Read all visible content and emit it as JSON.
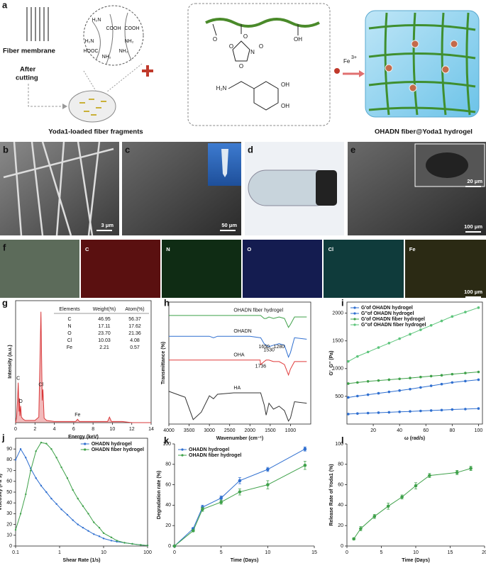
{
  "figure": {
    "panel_labels": [
      "a",
      "b",
      "c",
      "d",
      "e",
      "f",
      "g",
      "h",
      "i",
      "j",
      "k",
      "l"
    ],
    "a": {
      "fiber_membrane": "Fiber membrane",
      "after_cutting": [
        "After",
        "cutting"
      ],
      "fragments": "Yoda1-loaded fiber fragments",
      "hydrogel": "OHADN fiber@Yoda1 hydrogel",
      "ion": "Fe",
      "ion_charge": "3+",
      "zoom_groups": [
        "H₂N",
        "COOH",
        "H₂N",
        "NH₂",
        "HOOC",
        "NH₂",
        "COOH",
        "NH₂"
      ],
      "structure_atoms": [
        "O",
        "O",
        "O",
        "OH",
        "O",
        "N",
        "O",
        "H₂N",
        "OH",
        "OH"
      ]
    },
    "scale_bars": [
      "3 μm",
      "50 μm",
      "20 μm",
      "100 μm",
      "100 μm"
    ],
    "eds_maps": [
      "C",
      "N",
      "O",
      "Cl",
      "Fe"
    ],
    "eds_table": {
      "header": [
        "Elements",
        "Weight(%)",
        "Atom(%)"
      ],
      "rows": [
        [
          "C",
          "46.95",
          "56.37"
        ],
        [
          "N",
          "17.11",
          "17.62"
        ],
        [
          "O",
          "23.70",
          "21.36"
        ],
        [
          "Cl",
          "10.03",
          "4.08"
        ],
        [
          "Fe",
          "2.21",
          "0.57"
        ]
      ]
    }
  },
  "chart_data": [
    {
      "type": "line",
      "xlabel": "Energy (keV)",
      "ylabel": "Intensity (a.u.)",
      "frame": true,
      "fill": true,
      "xlim": [
        0,
        14
      ],
      "xticks": [
        0,
        2,
        4,
        6,
        8,
        10,
        12,
        14
      ],
      "ylim": [
        0,
        110
      ],
      "x": [
        0,
        0.1,
        0.2,
        0.27,
        0.35,
        0.39,
        0.45,
        0.52,
        0.6,
        0.8,
        1.0,
        1.5,
        2.0,
        2.4,
        2.62,
        2.75,
        2.82,
        2.95,
        3.2,
        4,
        5,
        6.2,
        6.4,
        6.6,
        8,
        9.5,
        9.7,
        9.9,
        11,
        12,
        14
      ],
      "series": [
        {
          "name": null,
          "color": "#d9393b",
          "values": [
            0,
            5,
            20,
            36,
            10,
            22,
            6,
            15,
            5,
            3,
            2,
            2,
            2,
            5,
            100,
            20,
            30,
            4,
            2,
            1,
            1,
            1,
            3,
            1,
            1,
            1,
            5,
            1,
            1,
            0,
            0
          ]
        }
      ],
      "annotations": [
        {
          "text": "C",
          "x": 0.27,
          "y": 40
        },
        {
          "text": "O",
          "x": 0.52,
          "y": 19
        },
        {
          "text": "Cl",
          "x": 2.62,
          "y": 34
        },
        {
          "text": "Fe",
          "x": 6.4,
          "y": 7
        }
      ]
    },
    {
      "type": "line",
      "xlabel": "Wavenumber (cm⁻¹)",
      "ylabel": "Transmittance (%)",
      "frame": true,
      "xlim": [
        4000,
        500
      ],
      "xticks": [
        4000,
        3500,
        3000,
        2500,
        2000,
        1500,
        1000
      ],
      "ylim": [
        0,
        82
      ],
      "x": [
        4000,
        3600,
        3400,
        3200,
        3000,
        2900,
        2800,
        2400,
        2000,
        1750,
        1736,
        1650,
        1600,
        1530,
        1420,
        1280,
        1150,
        1050,
        1000,
        900,
        600
      ],
      "series": [
        {
          "name": "HA",
          "color": "#333333",
          "values": [
            22,
            18,
            3,
            8,
            19,
            17,
            20,
            21,
            21,
            21,
            21,
            13,
            6,
            14,
            10,
            12,
            9,
            2,
            4,
            15,
            14
          ]
        },
        {
          "name": "OHA",
          "color": "#e03a3a",
          "values": [
            43,
            43,
            43,
            43,
            43,
            43,
            43,
            43,
            43,
            43,
            40,
            42,
            43,
            43,
            42,
            42,
            40,
            33,
            37,
            42,
            42
          ]
        },
        {
          "name": "OHADN",
          "color": "#2f6fd0",
          "values": [
            59,
            59,
            59,
            59,
            59,
            58,
            59,
            59,
            59,
            58,
            58,
            54,
            53,
            52,
            53,
            54,
            53,
            45,
            48,
            58,
            57
          ]
        },
        {
          "name": "OHADN fiber hydrogel",
          "color": "#3fa14a",
          "values": [
            73,
            73,
            73,
            73,
            73,
            73,
            73,
            73,
            73,
            73,
            73,
            71,
            71,
            72,
            71,
            72,
            71,
            65,
            67,
            72,
            72
          ]
        }
      ],
      "annotations": [
        {
          "text": "1736",
          "x": 1736,
          "y": 36
        },
        {
          "text": "1650",
          "x": 1650,
          "y": 49
        },
        {
          "text": "1530",
          "x": 1530,
          "y": 47
        },
        {
          "text": "1280",
          "x": 1280,
          "y": 49
        }
      ]
    },
    {
      "type": "line",
      "xlabel": "ω (rad/s)",
      "ylabel": "G', G'' (Pa)",
      "frame": true,
      "markers": true,
      "legend": "upper left",
      "xlim": [
        0,
        103
      ],
      "xticks": [
        20,
        40,
        60,
        80,
        100
      ],
      "ylim": [
        0,
        2200
      ],
      "yticks": [
        500,
        1000,
        1500,
        2000
      ],
      "x": [
        1,
        8,
        16,
        24,
        32,
        40,
        48,
        56,
        64,
        72,
        80,
        90,
        100
      ],
      "series": [
        {
          "name": "G'of OHADN hydrogel",
          "color": "#2f6fd0",
          "values": [
            480,
            505,
            530,
            555,
            580,
            605,
            630,
            660,
            690,
            720,
            750,
            775,
            800
          ]
        },
        {
          "name": "G''of OHADN hydrogel",
          "color": "#2f6fd0",
          "values": [
            180,
            190,
            198,
            205,
            212,
            220,
            228,
            236,
            244,
            252,
            262,
            270,
            280
          ]
        },
        {
          "name": "G'of OHADN fiber hydrogel",
          "color": "#3fa14a",
          "values": [
            730,
            750,
            770,
            785,
            800,
            815,
            830,
            848,
            865,
            880,
            900,
            920,
            940
          ]
        },
        {
          "name": "G''of OHADN fiber hydrogel",
          "color": "#5cc47a",
          "values": [
            1130,
            1220,
            1300,
            1380,
            1460,
            1540,
            1620,
            1700,
            1780,
            1860,
            1940,
            2020,
            2100
          ]
        }
      ]
    },
    {
      "type": "line",
      "xlabel": "Shear Rate (1/s)",
      "ylabel": "Viscosity (Pa·s)",
      "frame": true,
      "markers": true,
      "log_x": true,
      "legend": "upper right",
      "xlim": [
        0.1,
        100
      ],
      "xticks": [
        0.1,
        1,
        10,
        100
      ],
      "ylim": [
        0,
        100
      ],
      "yticks": [
        0,
        10,
        20,
        30,
        40,
        50,
        60,
        70,
        80,
        90
      ],
      "x": [
        0.1,
        0.13,
        0.17,
        0.22,
        0.29,
        0.38,
        0.5,
        0.65,
        0.85,
        1.1,
        1.5,
        2,
        2.6,
        3.4,
        4.5,
        6,
        8,
        10,
        15,
        20,
        30,
        45,
        70,
        100
      ],
      "series": [
        {
          "name": "OHADN hydrogel",
          "color": "#2f6fd0",
          "values": [
            80,
            90,
            82,
            72,
            63,
            56,
            50,
            44,
            39,
            34,
            29,
            24,
            20,
            17,
            14,
            11,
            9,
            7,
            5,
            4,
            3,
            2,
            1,
            0.5
          ]
        },
        {
          "name": "OHADN fiber hydrogel",
          "color": "#3fa14a",
          "values": [
            15,
            30,
            48,
            70,
            88,
            96,
            95,
            90,
            82,
            73,
            63,
            52,
            44,
            37,
            30,
            22,
            17,
            12,
            8,
            5,
            3,
            2,
            1,
            0.5
          ]
        }
      ]
    },
    {
      "type": "line",
      "xlabel": "Time (Days)",
      "ylabel": "Degradation rate (%)",
      "markers": true,
      "legend": "upper left",
      "xlim": [
        0,
        15
      ],
      "xticks": [
        0,
        5,
        10,
        15
      ],
      "ylim": [
        0,
        100
      ],
      "yticks": [
        0,
        20,
        40,
        60,
        80,
        100
      ],
      "x": [
        0,
        2,
        3,
        5,
        7,
        10,
        14
      ],
      "series": [
        {
          "name": "OHADN hydrogel",
          "color": "#2f6fd0",
          "values": [
            0,
            17,
            38,
            47,
            64,
            75,
            95
          ],
          "errors": [
            0,
            1,
            2,
            2,
            3,
            2,
            2
          ]
        },
        {
          "name": "OHADN fiber hydrogel",
          "color": "#3fa14a",
          "values": [
            0,
            15,
            36,
            43,
            53,
            60,
            79
          ],
          "errors": [
            0,
            1,
            2,
            2,
            3,
            4,
            4
          ]
        }
      ]
    },
    {
      "type": "line",
      "xlabel": "Time (Days)",
      "ylabel": "Release Rate of Yoda1 (%)",
      "markers": true,
      "xlim": [
        0,
        20
      ],
      "xticks": [
        0,
        5,
        10,
        15,
        20
      ],
      "ylim": [
        0,
        100
      ],
      "yticks": [
        0,
        20,
        40,
        60,
        80,
        100
      ],
      "x": [
        1,
        2,
        4,
        6,
        8,
        10,
        12,
        16,
        18
      ],
      "series": [
        {
          "name": null,
          "color": "#3fa14a",
          "values": [
            7,
            17,
            29,
            39,
            48,
            59,
            69,
            72,
            76
          ],
          "errors": [
            1,
            2,
            2,
            3,
            2,
            3,
            2,
            2,
            2
          ]
        }
      ]
    }
  ]
}
